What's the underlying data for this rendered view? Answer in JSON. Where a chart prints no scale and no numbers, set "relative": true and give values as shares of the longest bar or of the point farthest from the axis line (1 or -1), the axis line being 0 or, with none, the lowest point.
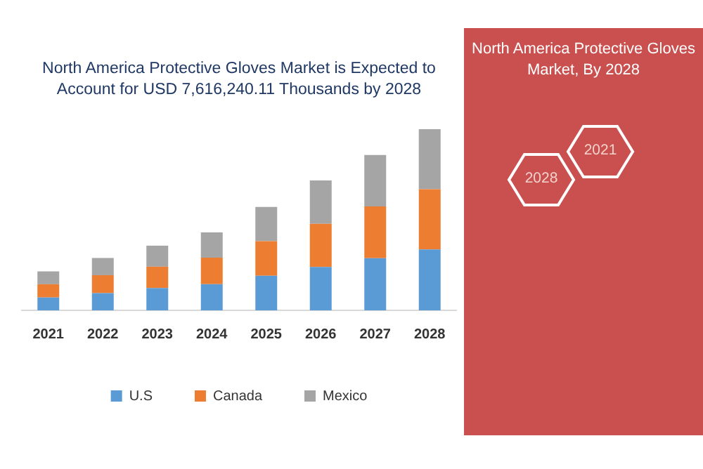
{
  "chart_data": {
    "type": "bar",
    "stacked": true,
    "relative": true,
    "title": "North America Protective Gloves Market is Expected to Account for USD 7,616,240.11 Thousands by 2028",
    "subtitle": "North America Protective Gloves Market, By 2028",
    "annotations": [
      "2028",
      "2021"
    ],
    "categories": [
      "2021",
      "2022",
      "2023",
      "2024",
      "2025",
      "2026",
      "2027",
      "2028"
    ],
    "series": [
      {
        "name": "U.S",
        "color": "#5b9bd5",
        "values": [
          0.071,
          0.095,
          0.123,
          0.144,
          0.191,
          0.239,
          0.288,
          0.336
        ]
      },
      {
        "name": "Canada",
        "color": "#ed7d31",
        "values": [
          0.073,
          0.099,
          0.118,
          0.147,
          0.191,
          0.239,
          0.286,
          0.333
        ]
      },
      {
        "name": "Mexico",
        "color": "#a5a5a5",
        "values": [
          0.071,
          0.095,
          0.116,
          0.139,
          0.189,
          0.239,
          0.284,
          0.331
        ]
      }
    ],
    "legend": "bottom"
  }
}
